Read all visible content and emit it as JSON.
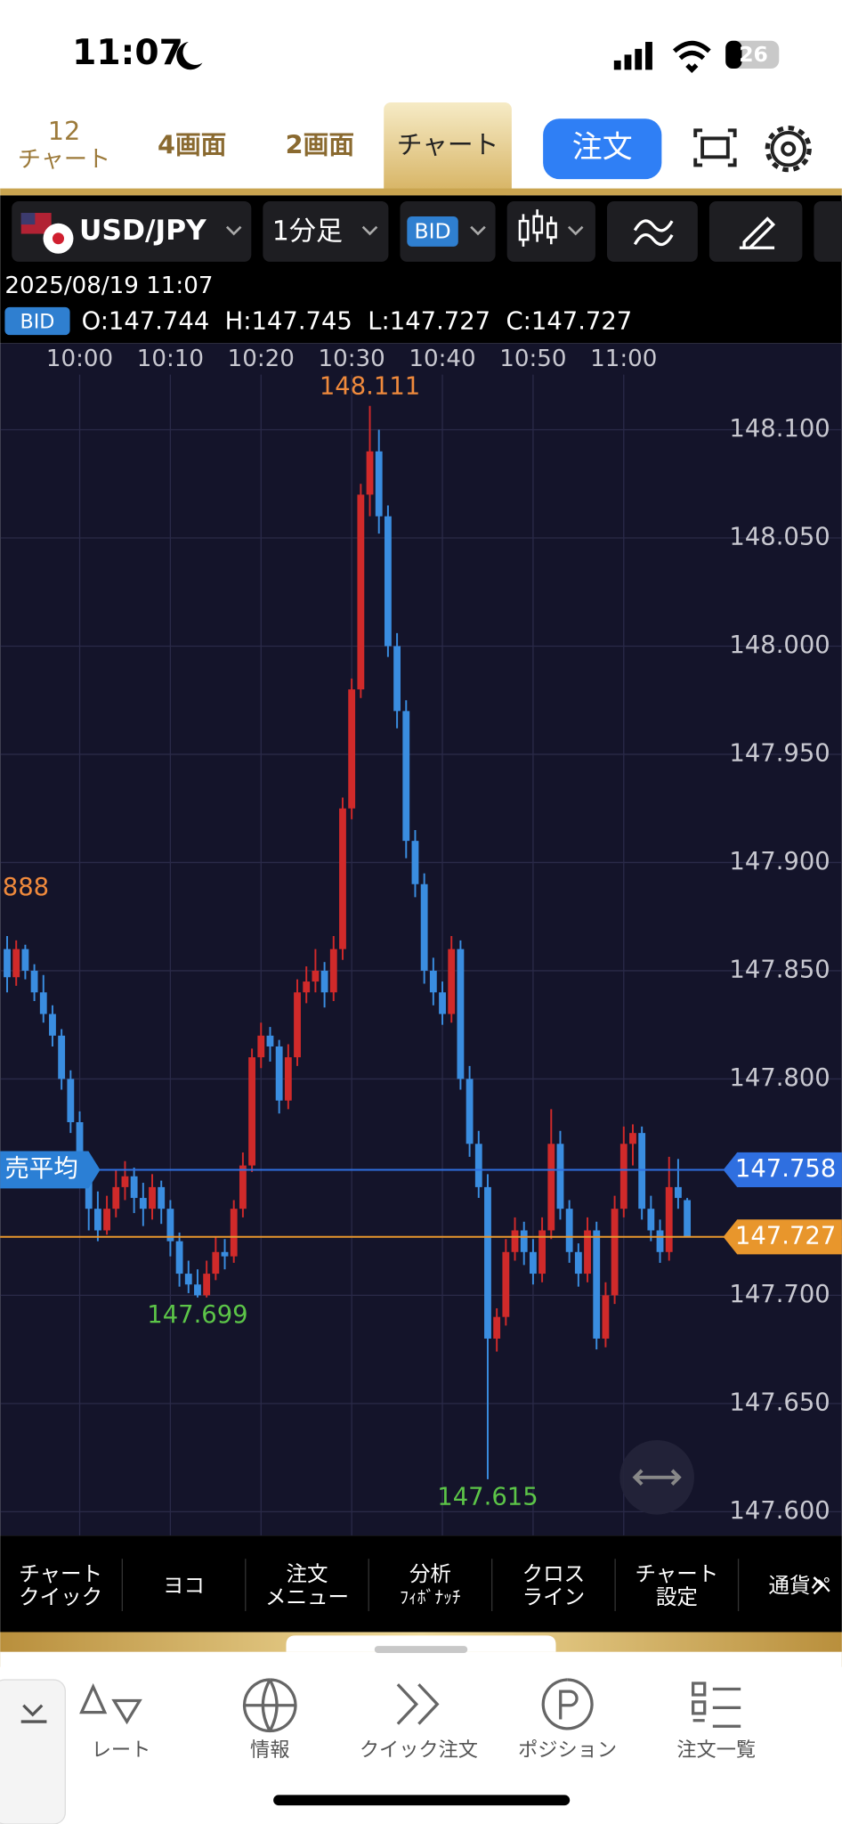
{
  "status_bar": {
    "time": "11:07",
    "battery": "26"
  },
  "screen_tab": {
    "number": "12",
    "label": "チャート"
  },
  "tabs": [
    "4画面",
    "2画面",
    "チャート"
  ],
  "order_button": "注文",
  "toolbar": {
    "pair": "USD/JPY",
    "timeframe": "1分足",
    "price_type": "BID"
  },
  "info": {
    "datetime": "2025/08/19 11:07",
    "price_type": "BID",
    "ohlc": "O:147.744  H:147.745  L:147.727  C:147.727"
  },
  "chart_data": {
    "type": "candlestick",
    "x": [
      "9:52",
      "9:53",
      "9:54",
      "9:55",
      "9:56",
      "9:57",
      "9:58",
      "9:59",
      "10:00",
      "10:01",
      "10:02",
      "10:03",
      "10:04",
      "10:05",
      "10:06",
      "10:07",
      "10:08",
      "10:09",
      "10:10",
      "10:11",
      "10:12",
      "10:13",
      "10:14",
      "10:15",
      "10:16",
      "10:17",
      "10:18",
      "10:19",
      "10:20",
      "10:21",
      "10:22",
      "10:23",
      "10:24",
      "10:25",
      "10:26",
      "10:27",
      "10:28",
      "10:29",
      "10:30",
      "10:31",
      "10:32",
      "10:33",
      "10:34",
      "10:35",
      "10:36",
      "10:37",
      "10:38",
      "10:39",
      "10:40",
      "10:41",
      "10:42",
      "10:43",
      "10:44",
      "10:45",
      "10:46",
      "10:47",
      "10:48",
      "10:49",
      "10:50",
      "10:51",
      "10:52",
      "10:53",
      "10:54",
      "10:55",
      "10:56",
      "10:57",
      "10:58",
      "10:59",
      "11:00",
      "11:01",
      "11:02",
      "11:03",
      "11:04",
      "11:05",
      "11:06",
      "11:07"
    ],
    "candles": [
      [
        147.86,
        147.866,
        147.84,
        147.847
      ],
      [
        147.847,
        147.864,
        147.843,
        147.86
      ],
      [
        147.86,
        147.862,
        147.846,
        147.85
      ],
      [
        147.85,
        147.853,
        147.836,
        147.84
      ],
      [
        147.84,
        147.848,
        147.826,
        147.83
      ],
      [
        147.83,
        147.834,
        147.815,
        147.82
      ],
      [
        147.82,
        147.823,
        147.795,
        147.8
      ],
      [
        147.8,
        147.804,
        147.775,
        147.78
      ],
      [
        147.78,
        147.785,
        147.755,
        147.76
      ],
      [
        147.76,
        147.763,
        147.73,
        147.74
      ],
      [
        147.74,
        147.748,
        147.725,
        147.73
      ],
      [
        147.73,
        147.746,
        147.728,
        147.74
      ],
      [
        147.74,
        147.758,
        147.736,
        147.75
      ],
      [
        147.75,
        147.762,
        147.744,
        147.755
      ],
      [
        147.755,
        147.759,
        147.738,
        147.745
      ],
      [
        147.745,
        147.752,
        147.732,
        147.74
      ],
      [
        147.74,
        147.756,
        147.735,
        147.75
      ],
      [
        147.75,
        147.753,
        147.733,
        147.74
      ],
      [
        147.74,
        147.744,
        147.718,
        147.725
      ],
      [
        147.725,
        147.729,
        147.704,
        147.71
      ],
      [
        147.71,
        147.716,
        147.701,
        147.705
      ],
      [
        147.705,
        147.712,
        147.699,
        147.7
      ],
      [
        147.7,
        147.716,
        147.699,
        147.71
      ],
      [
        147.71,
        147.727,
        147.707,
        147.72
      ],
      [
        147.72,
        147.726,
        147.712,
        147.718
      ],
      [
        147.718,
        147.744,
        147.715,
        147.74
      ],
      [
        147.74,
        147.766,
        147.736,
        147.76
      ],
      [
        147.76,
        147.814,
        147.757,
        147.81
      ],
      [
        147.81,
        147.826,
        147.805,
        147.82
      ],
      [
        147.82,
        147.824,
        147.808,
        147.815
      ],
      [
        147.815,
        147.818,
        147.784,
        147.79
      ],
      [
        147.79,
        147.816,
        147.786,
        147.81
      ],
      [
        147.81,
        147.846,
        147.806,
        147.84
      ],
      [
        147.84,
        147.852,
        147.835,
        147.845
      ],
      [
        147.845,
        147.86,
        147.84,
        147.85
      ],
      [
        147.85,
        147.854,
        147.833,
        147.84
      ],
      [
        147.84,
        147.866,
        147.836,
        147.86
      ],
      [
        147.86,
        147.93,
        147.855,
        147.925
      ],
      [
        147.925,
        147.985,
        147.92,
        147.98
      ],
      [
        147.98,
        148.075,
        147.976,
        148.07
      ],
      [
        148.07,
        148.111,
        148.06,
        148.09
      ],
      [
        148.09,
        148.1,
        148.052,
        148.06
      ],
      [
        148.06,
        148.065,
        147.995,
        148.0
      ],
      [
        148.0,
        148.006,
        147.962,
        147.97
      ],
      [
        147.97,
        147.975,
        147.902,
        147.91
      ],
      [
        147.91,
        147.915,
        147.884,
        147.89
      ],
      [
        147.89,
        147.895,
        147.844,
        147.85
      ],
      [
        147.85,
        147.856,
        147.834,
        147.84
      ],
      [
        147.84,
        147.845,
        147.825,
        147.83
      ],
      [
        147.83,
        147.866,
        147.826,
        147.86
      ],
      [
        147.86,
        147.864,
        147.795,
        147.8
      ],
      [
        147.8,
        147.806,
        147.764,
        147.77
      ],
      [
        147.77,
        147.776,
        147.745,
        147.75
      ],
      [
        147.75,
        147.756,
        147.615,
        147.68
      ],
      [
        147.68,
        147.694,
        147.674,
        147.69
      ],
      [
        147.69,
        147.726,
        147.686,
        147.72
      ],
      [
        147.72,
        147.736,
        147.716,
        147.73
      ],
      [
        147.73,
        147.734,
        147.714,
        147.72
      ],
      [
        147.72,
        147.726,
        147.705,
        147.71
      ],
      [
        147.71,
        147.736,
        147.706,
        147.73
      ],
      [
        147.73,
        147.786,
        147.726,
        147.77
      ],
      [
        147.77,
        147.776,
        147.735,
        147.74
      ],
      [
        147.74,
        147.744,
        147.715,
        147.72
      ],
      [
        147.72,
        147.724,
        147.704,
        147.71
      ],
      [
        147.71,
        147.736,
        147.706,
        147.73
      ],
      [
        147.73,
        147.734,
        147.675,
        147.68
      ],
      [
        147.68,
        147.706,
        147.676,
        147.7
      ],
      [
        147.7,
        147.746,
        147.696,
        147.74
      ],
      [
        147.74,
        147.778,
        147.736,
        147.77
      ],
      [
        147.77,
        147.779,
        147.76,
        147.775
      ],
      [
        147.775,
        147.778,
        147.735,
        147.74
      ],
      [
        147.74,
        147.746,
        147.725,
        147.73
      ],
      [
        147.73,
        147.735,
        147.715,
        147.72
      ],
      [
        147.72,
        147.764,
        147.716,
        147.75
      ],
      [
        147.75,
        147.763,
        147.74,
        147.745
      ],
      [
        147.744,
        147.745,
        147.727,
        147.727
      ]
    ],
    "up_color": "#d02a2a",
    "down_color": "#3a8de0",
    "ylim": [
      147.589,
      148.14
    ],
    "yticks": [
      {
        "value": 147.6,
        "label": "147.600"
      },
      {
        "value": 147.65,
        "label": "147.650"
      },
      {
        "value": 147.7,
        "label": "147.700"
      },
      {
        "value": 147.8,
        "label": "147.800"
      },
      {
        "value": 147.85,
        "label": "147.850"
      },
      {
        "value": 147.9,
        "label": "147.900"
      },
      {
        "value": 147.95,
        "label": "147.950"
      },
      {
        "value": 148.0,
        "label": "148.000"
      },
      {
        "value": 148.05,
        "label": "148.050"
      },
      {
        "value": 148.1,
        "label": "148.100"
      }
    ],
    "xticks": [
      "10:00",
      "10:10",
      "10:20",
      "10:30",
      "10:40",
      "10:50",
      "11:00"
    ],
    "grid": true,
    "annotations": [
      {
        "x": "10:32",
        "value": 148.111,
        "color": "#f08a3c"
      },
      {
        "x": "10:13",
        "value": 147.699,
        "color": "#5cc548"
      },
      {
        "x": "10:45",
        "value": 147.615,
        "color": "#5cc548"
      }
    ],
    "edge_label": {
      "value": 147.888,
      "label": "888",
      "color": "#f08a3c"
    },
    "price_lines": [
      {
        "name": "売平均",
        "value": 147.758,
        "color": "#2f6fe0"
      },
      {
        "value": 147.727,
        "color": "#e8962c"
      }
    ]
  },
  "chart_menu": [
    [
      "チャート",
      "クイック"
    ],
    [
      "ヨコ"
    ],
    [
      "注文",
      "メニュー"
    ],
    [
      "分析",
      "ﾌｨﾎﾞﾅｯﾁ"
    ],
    [
      "クロス",
      "ライン"
    ],
    [
      "チャート",
      "設定"
    ],
    [
      "通貨ペ"
    ]
  ],
  "bottom_nav": [
    "レート",
    "情報",
    "クイック注文",
    "ポジション",
    "注文一覧"
  ]
}
